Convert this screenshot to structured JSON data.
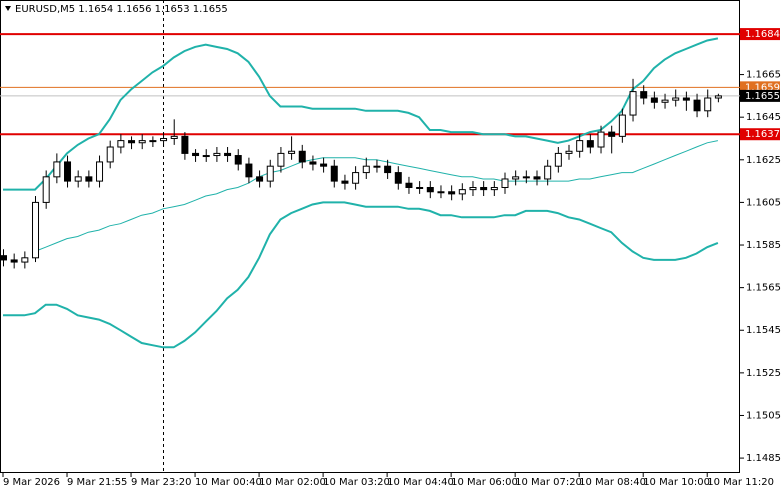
{
  "chart_data": {
    "type": "candlestick",
    "title": "EURUSD,M5 1.1654 1.1656 1.1653 1.1655",
    "categories": [
      "9 Mar 2026",
      null,
      null,
      null,
      null,
      null,
      "9 Mar 21:55",
      null,
      null,
      null,
      null,
      null,
      "9 Mar 23:20",
      null,
      null,
      null,
      null,
      null,
      "10 Mar 00:40",
      null,
      null,
      null,
      null,
      null,
      "10 Mar 02:00",
      null,
      null,
      null,
      null,
      null,
      "10 Mar 03:20",
      null,
      null,
      null,
      null,
      null,
      "10 Mar 04:40",
      null,
      null,
      null,
      null,
      null,
      "10 Mar 06:00",
      null,
      null,
      null,
      null,
      null,
      "10 Mar 07:20",
      null,
      null,
      null,
      null,
      null,
      "10 Mar 08:40",
      null,
      null,
      null,
      null,
      null,
      "10 Mar 10:00",
      null,
      null,
      null,
      null,
      null,
      "10 Mar 11:20",
      null
    ],
    "open": [
      1.158,
      1.1578,
      1.1577,
      1.1579,
      1.1605,
      1.1617,
      1.1624,
      1.1615,
      1.1617,
      1.1615,
      1.1624,
      1.1631,
      1.1634,
      1.1633,
      1.1634,
      1.1634,
      1.1635,
      1.1636,
      1.1628,
      1.1627,
      1.1627,
      1.1628,
      1.1627,
      1.1623,
      1.1617,
      1.1615,
      1.1622,
      1.1628,
      1.1629,
      1.1624,
      1.1623,
      1.1622,
      1.1615,
      1.1614,
      1.1619,
      1.1622,
      1.1622,
      1.1619,
      1.1614,
      1.1612,
      1.1612,
      1.161,
      1.161,
      1.1609,
      1.1611,
      1.1612,
      1.1611,
      1.1612,
      1.1616,
      1.1617,
      1.1617,
      1.1616,
      1.1622,
      1.1628,
      1.1629,
      1.1634,
      1.1631,
      1.1638,
      1.1636,
      1.1646,
      1.1657,
      1.1654,
      1.1652,
      1.1653,
      1.1654,
      1.1653,
      1.1648,
      1.1654
    ],
    "high": [
      1.1583,
      1.1581,
      1.1582,
      1.1608,
      1.162,
      1.1628,
      1.1627,
      1.162,
      1.162,
      1.1627,
      1.1634,
      1.1637,
      1.1636,
      1.1637,
      1.1636,
      1.1638,
      1.1644,
      1.1638,
      1.163,
      1.163,
      1.1631,
      1.1631,
      1.163,
      1.1626,
      1.162,
      1.1625,
      1.1631,
      1.1636,
      1.1632,
      1.1627,
      1.1626,
      1.1625,
      1.1618,
      1.1622,
      1.1626,
      1.1625,
      1.1625,
      1.1622,
      1.1617,
      1.1615,
      1.1615,
      1.1613,
      1.1613,
      1.1614,
      1.1615,
      1.1615,
      1.1615,
      1.1619,
      1.162,
      1.162,
      1.162,
      1.1625,
      1.1631,
      1.1632,
      1.1637,
      1.1637,
      1.1641,
      1.1641,
      1.1649,
      1.1663,
      1.166,
      1.1657,
      1.1656,
      1.1658,
      1.1657,
      1.1656,
      1.1658,
      1.1656
    ],
    "low": [
      1.1575,
      1.1574,
      1.1574,
      1.1577,
      1.1602,
      1.1614,
      1.1612,
      1.1612,
      1.1612,
      1.1612,
      1.1621,
      1.1628,
      1.163,
      1.163,
      1.1631,
      1.1631,
      1.1632,
      1.1625,
      1.1624,
      1.1624,
      1.1624,
      1.1624,
      1.162,
      1.1614,
      1.1612,
      1.1612,
      1.1619,
      1.1625,
      1.1621,
      1.162,
      1.1619,
      1.1612,
      1.1611,
      1.1611,
      1.1616,
      1.1619,
      1.1616,
      1.1611,
      1.1609,
      1.1609,
      1.1607,
      1.1607,
      1.1606,
      1.1606,
      1.1608,
      1.1608,
      1.1608,
      1.1609,
      1.1613,
      1.1614,
      1.1613,
      1.1613,
      1.1619,
      1.1625,
      1.1626,
      1.1628,
      1.1628,
      1.1628,
      1.1633,
      1.1643,
      1.1651,
      1.1649,
      1.1649,
      1.165,
      1.1648,
      1.1645,
      1.1645,
      1.1652
    ],
    "close": [
      1.1578,
      1.1577,
      1.1579,
      1.1605,
      1.1617,
      1.1624,
      1.1615,
      1.1617,
      1.1615,
      1.1624,
      1.1631,
      1.1634,
      1.1633,
      1.1634,
      1.1634,
      1.1635,
      1.1636,
      1.1628,
      1.1627,
      1.1627,
      1.1628,
      1.1627,
      1.1623,
      1.1617,
      1.1615,
      1.1622,
      1.1628,
      1.1629,
      1.1624,
      1.1623,
      1.1622,
      1.1615,
      1.1614,
      1.1619,
      1.1622,
      1.1622,
      1.1619,
      1.1614,
      1.1612,
      1.1612,
      1.161,
      1.161,
      1.1609,
      1.1611,
      1.1612,
      1.1611,
      1.1612,
      1.1616,
      1.1617,
      1.1617,
      1.1616,
      1.1622,
      1.1628,
      1.1629,
      1.1634,
      1.1631,
      1.1638,
      1.1636,
      1.1646,
      1.1657,
      1.1654,
      1.1652,
      1.1653,
      1.1654,
      1.1653,
      1.1648,
      1.1654,
      1.1655
    ],
    "bands": {
      "color": "#20b2aa",
      "upper": [
        1.1611,
        1.1611,
        1.1611,
        1.1611,
        1.1616,
        1.1622,
        1.1628,
        1.1632,
        1.1635,
        1.1637,
        1.1644,
        1.1653,
        1.1658,
        1.1662,
        1.1666,
        1.1669,
        1.1673,
        1.1676,
        1.1678,
        1.1679,
        1.1678,
        1.1677,
        1.1675,
        1.1671,
        1.1664,
        1.1655,
        1.165,
        1.165,
        1.165,
        1.1649,
        1.1649,
        1.1649,
        1.1649,
        1.1649,
        1.1648,
        1.1648,
        1.1648,
        1.1648,
        1.1647,
        1.1645,
        1.1639,
        1.1639,
        1.1638,
        1.1638,
        1.1638,
        1.1637,
        1.1637,
        1.1637,
        1.1636,
        1.1636,
        1.1635,
        1.1634,
        1.1633,
        1.1634,
        1.1636,
        1.1638,
        1.1639,
        1.1643,
        1.1648,
        1.1658,
        1.1662,
        1.1668,
        1.1672,
        1.1675,
        1.1677,
        1.1679,
        1.1681,
        1.1682
      ],
      "middle": [
        null,
        null,
        null,
        1.1582,
        1.1584,
        1.1586,
        1.1588,
        1.1589,
        1.1591,
        1.1592,
        1.1594,
        1.1595,
        1.1597,
        1.1599,
        1.16,
        1.1602,
        1.1603,
        1.1604,
        1.1606,
        1.1608,
        1.1609,
        1.1611,
        1.1612,
        1.1614,
        1.1617,
        1.1619,
        1.162,
        1.1622,
        1.1624,
        1.1625,
        1.1626,
        1.1626,
        1.1626,
        1.1626,
        1.1625,
        1.1625,
        1.1624,
        1.1623,
        1.1622,
        1.1621,
        1.162,
        1.1619,
        1.1618,
        1.1617,
        1.1617,
        1.1616,
        1.1616,
        1.1615,
        1.1615,
        1.1615,
        1.1615,
        1.1615,
        1.1615,
        1.1615,
        1.1616,
        1.1616,
        1.1617,
        1.1618,
        1.1619,
        1.1619,
        1.1621,
        1.1623,
        1.1625,
        1.1627,
        1.1629,
        1.1631,
        1.1633,
        1.1634
      ],
      "lower": [
        1.1552,
        1.1552,
        1.1552,
        1.1553,
        1.1557,
        1.1557,
        1.1555,
        1.1552,
        1.1551,
        1.155,
        1.1548,
        1.1545,
        1.1542,
        1.1539,
        1.1538,
        1.1537,
        1.1537,
        1.154,
        1.1544,
        1.1549,
        1.1554,
        1.156,
        1.1564,
        1.157,
        1.1579,
        1.159,
        1.1597,
        1.16,
        1.1602,
        1.1604,
        1.1605,
        1.1605,
        1.1605,
        1.1604,
        1.1603,
        1.1603,
        1.1603,
        1.1603,
        1.1602,
        1.1602,
        1.1601,
        1.1599,
        1.1599,
        1.1598,
        1.1598,
        1.1598,
        1.1598,
        1.1599,
        1.1599,
        1.1601,
        1.1601,
        1.1601,
        1.16,
        1.1598,
        1.1597,
        1.1595,
        1.1593,
        1.1591,
        1.1586,
        1.1582,
        1.1579,
        1.1578,
        1.1578,
        1.1578,
        1.1579,
        1.1581,
        1.1584,
        1.1586
      ]
    },
    "levels": [
      {
        "value": 1.1684,
        "color": "#e00000"
      },
      {
        "value": 1.1637,
        "color": "#e00000"
      },
      {
        "value": 1.1659,
        "color": "#e07020"
      }
    ],
    "last_price": {
      "value": 1.1655,
      "color": "#000000"
    },
    "ylim": [
      1.1478,
      1.17
    ],
    "yticks": [
      1.1665,
      1.1645,
      1.1625,
      1.1605,
      1.1585,
      1.1565,
      1.1545,
      1.1525,
      1.1505,
      1.1485
    ],
    "grid": false
  }
}
